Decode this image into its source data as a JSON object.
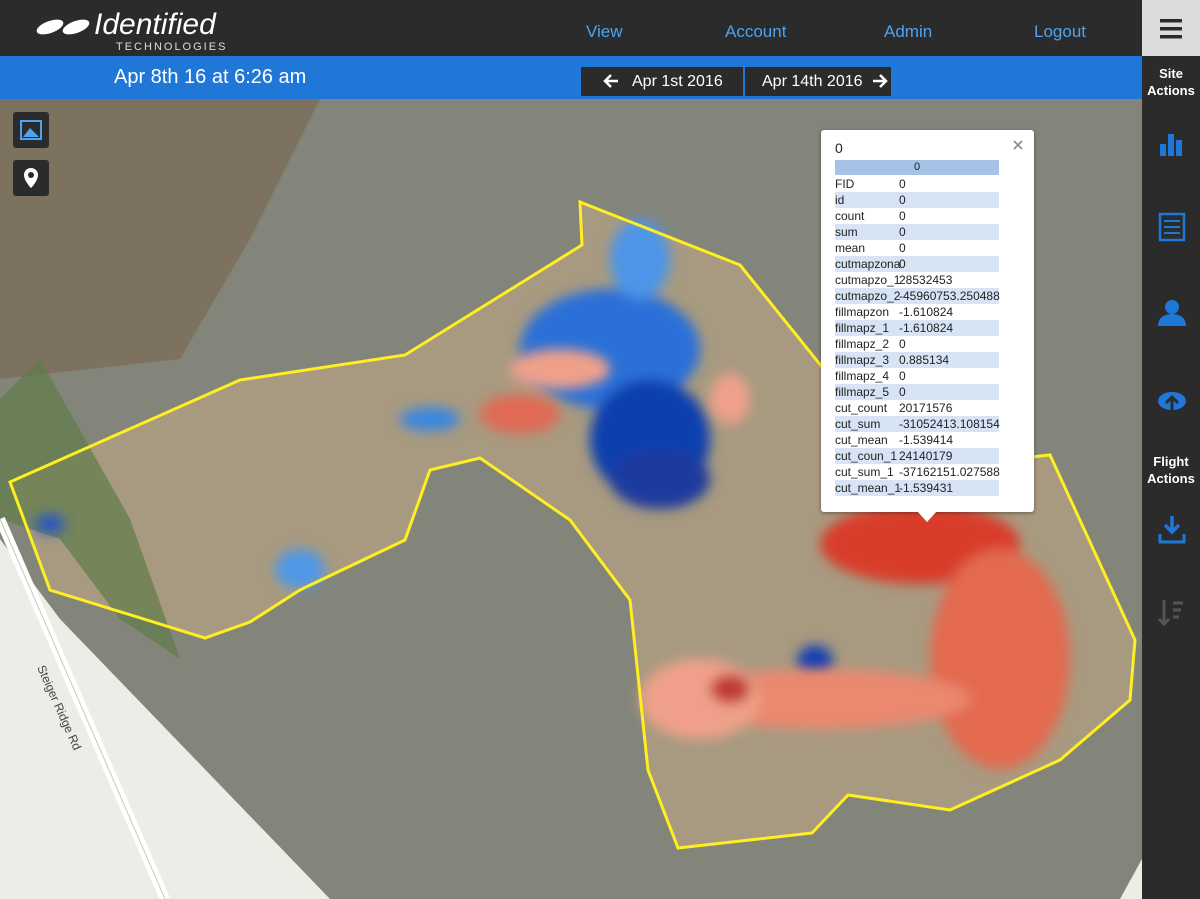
{
  "header": {
    "logo": "Identified",
    "logo_sub": "TECHNOLOGIES",
    "nav": [
      "View",
      "Account",
      "Admin",
      "Logout"
    ]
  },
  "toolbar": {
    "date": "Apr 8th 16 at 6:26 am",
    "prev": "Apr 1st 2016",
    "next": "Apr 14th 2016"
  },
  "sidebar": {
    "site_actions": "Site Actions",
    "flight_actions": "Flight Actions"
  },
  "map": {
    "road_label": "Steiger Ridge Rd"
  },
  "popup": {
    "title": "0",
    "table_header": "0",
    "rows": [
      [
        "FID",
        "0"
      ],
      [
        "id",
        "0"
      ],
      [
        "count",
        "0"
      ],
      [
        "sum",
        "0"
      ],
      [
        "mean",
        "0"
      ],
      [
        "cutmapzona",
        "0"
      ],
      [
        "cutmapzo_1",
        "28532453"
      ],
      [
        "cutmapzo_2",
        "-45960753.250488"
      ],
      [
        "fillmapzon",
        "-1.610824"
      ],
      [
        "fillmapz_1",
        "-1.610824"
      ],
      [
        "fillmapz_2",
        "0"
      ],
      [
        "fillmapz_3",
        "0.885134"
      ],
      [
        "fillmapz_4",
        "0"
      ],
      [
        "fillmapz_5",
        "0"
      ],
      [
        "cut_count",
        "20171576"
      ],
      [
        "cut_sum",
        "-31052413.108154"
      ],
      [
        "cut_mean",
        "-1.539414"
      ],
      [
        "cut_coun_1",
        "24140179"
      ],
      [
        "cut_sum_1",
        "-37162151.027588"
      ],
      [
        "cut_mean_1",
        "-1.539431"
      ]
    ]
  }
}
